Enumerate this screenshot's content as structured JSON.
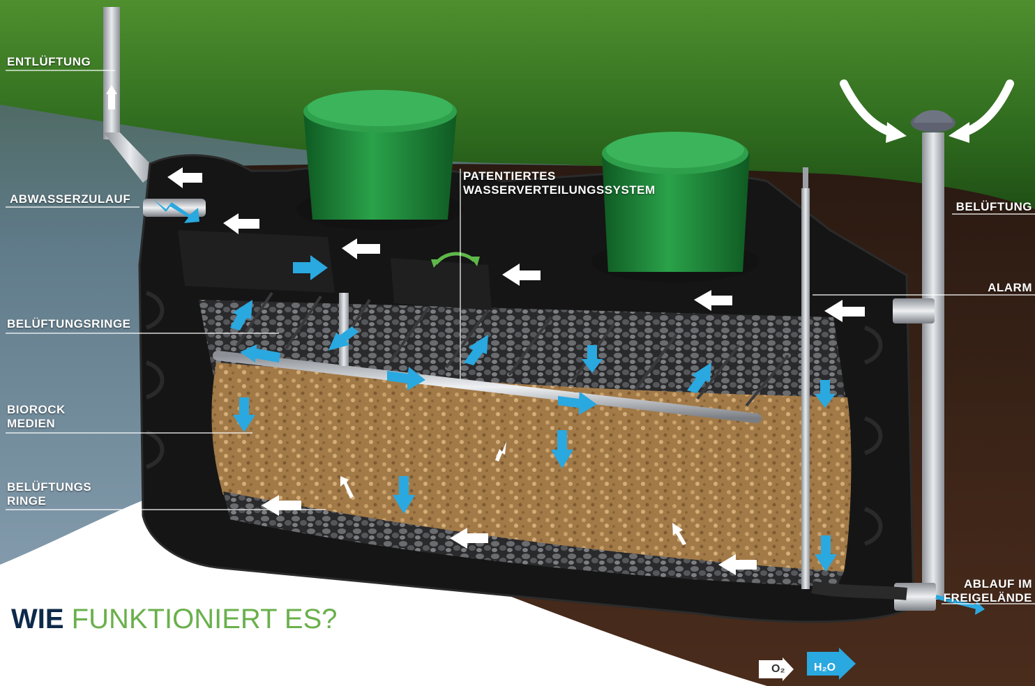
{
  "heading": {
    "word1": "WIE",
    "word2": "FUNKTIONIERT ES?"
  },
  "labels": {
    "entlueftung": "ENTLÜFTUNG",
    "abwasserzulauf": "ABWASSERZULAUF",
    "belueftungsringe_top": "BELÜFTUNGSRINGE",
    "biorock_line1": "BIOROCK",
    "biorock_line2": "MEDIEN",
    "belueftungsringe_bottom_line1": "BELÜFTUNGS",
    "belueftungsringe_bottom_line2": "RINGE",
    "patent_line1": "PATENTIERTES",
    "patent_line2": "WASSERVERTEILUNGSSYSTEM",
    "belueftung_right": "BELÜFTUNG",
    "alarm": "ALARM",
    "ablauf_line1": "ABLAUF IM",
    "ablauf_line2": "FREIGELÄNDE"
  },
  "legend": {
    "o2": "O₂",
    "h2o": "H₂O"
  },
  "colors": {
    "accent_blue": "#2aa8e0",
    "heading_dark": "#0d2a4a",
    "heading_green": "#6ab04c",
    "tank_black": "#1a1a1a",
    "lid_green": "#1f8a3a",
    "soil": "#3a2418",
    "grass": "#2e6a1e",
    "media_brown": "#a27a48"
  },
  "icons": [
    "white-arrow-icon",
    "blue-arrow-icon",
    "green-rotation-icon"
  ]
}
